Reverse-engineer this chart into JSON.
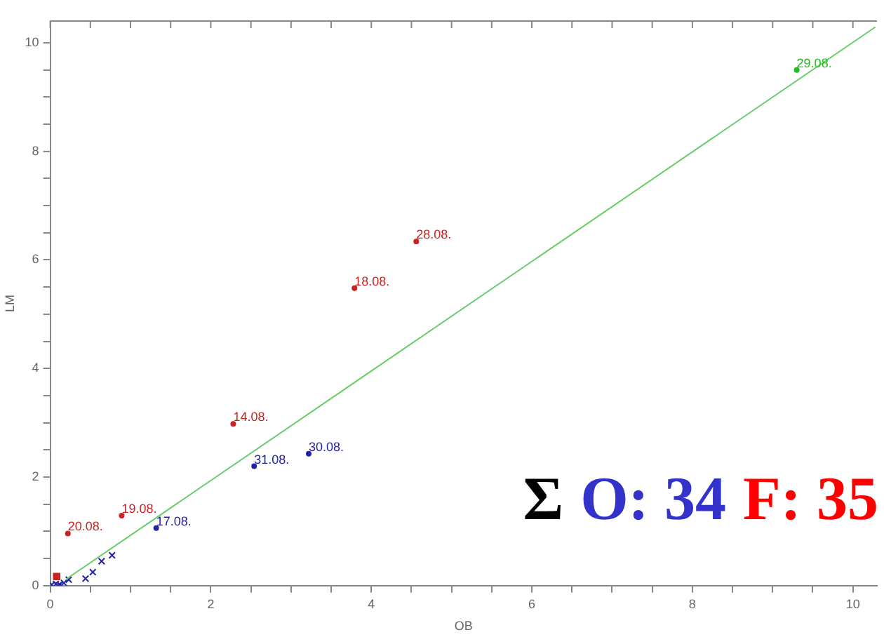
{
  "chart_data": {
    "type": "scatter",
    "xlabel": "OB",
    "ylabel": "LM",
    "xlim": [
      0,
      10.3
    ],
    "ylim": [
      0,
      10.4
    ],
    "xticks": [
      0,
      {
        "value": 0.5,
        "label": null
      },
      {
        "value": 1,
        "label": null
      },
      {
        "value": 1.5,
        "label": null
      },
      2,
      {
        "value": 2.5,
        "label": null
      },
      {
        "value": 3,
        "label": null
      },
      {
        "value": 3.5,
        "label": null
      },
      4,
      {
        "value": 4.5,
        "label": null
      },
      {
        "value": 5,
        "label": null
      },
      {
        "value": 5.5,
        "label": null
      },
      6,
      {
        "value": 6.5,
        "label": null
      },
      {
        "value": 7,
        "label": null
      },
      {
        "value": 7.5,
        "label": null
      },
      8,
      {
        "value": 8.5,
        "label": null
      },
      {
        "value": 9,
        "label": null
      },
      {
        "value": 9.5,
        "label": null
      },
      10
    ],
    "yticks": [
      0,
      {
        "value": 0.5,
        "label": null
      },
      {
        "value": 1,
        "label": null
      },
      {
        "value": 1.5,
        "label": null
      },
      2,
      {
        "value": 2.5,
        "label": null
      },
      {
        "value": 3,
        "label": null
      },
      {
        "value": 3.5,
        "label": null
      },
      4,
      {
        "value": 4.5,
        "label": null
      },
      {
        "value": 5,
        "label": null
      },
      {
        "value": 5.5,
        "label": null
      },
      6,
      {
        "value": 6.5,
        "label": null
      },
      {
        "value": 7,
        "label": null
      },
      {
        "value": 7.5,
        "label": null
      },
      8,
      {
        "value": 8.5,
        "label": null
      },
      {
        "value": 9,
        "label": null
      },
      {
        "value": 9.5,
        "label": null
      },
      10
    ],
    "grid": false,
    "legend": false,
    "series": [
      {
        "type": "line",
        "color": "#66cc66",
        "marker": "none",
        "x": [
          0.19,
          10.28
        ],
        "values": [
          0.11,
          10.29
        ]
      },
      {
        "color": "#cc2222",
        "marker": "square",
        "x": [
          0.08
        ],
        "values": [
          0.17
        ]
      },
      {
        "color": "#2222aa",
        "marker": "cross",
        "x": [
          0.02,
          0.07,
          0.1,
          0.12,
          0.17,
          0.23,
          0.44,
          0.53,
          0.64,
          0.77
        ],
        "values": [
          0.02,
          0.03,
          0.0,
          0.02,
          0.05,
          0.11,
          0.13,
          0.25,
          0.45,
          0.56
        ]
      },
      {
        "color": "#cc2222",
        "marker": "circle",
        "x": [
          0.22,
          0.89,
          2.28,
          3.79,
          4.56
        ],
        "values": [
          0.96,
          1.29,
          2.98,
          5.48,
          6.34
        ]
      },
      {
        "color": "#2222aa",
        "marker": "circle",
        "x": [
          1.32,
          2.54,
          3.22
        ],
        "values": [
          1.06,
          2.2,
          2.43
        ]
      },
      {
        "color": "#22bb22",
        "marker": "circle",
        "x": [
          9.3
        ],
        "values": [
          9.5
        ]
      }
    ],
    "annotations": [
      "Σ",
      "O: 34",
      "F: 35",
      {
        "text": "20.08.",
        "x": 0.22,
        "y": 0.96
      },
      {
        "text": "19.08.",
        "x": 0.89,
        "y": 1.29
      },
      {
        "text": "14.08.",
        "x": 2.28,
        "y": 2.98
      },
      {
        "text": "18.08.",
        "x": 3.79,
        "y": 5.48
      },
      {
        "text": "28.08.",
        "x": 4.56,
        "y": 6.34
      },
      {
        "text": "17.08.",
        "x": 1.32,
        "y": 1.06
      },
      {
        "text": "31.08.",
        "x": 2.54,
        "y": 2.2
      },
      {
        "text": "30.08.",
        "x": 3.22,
        "y": 2.43
      },
      {
        "text": "29.08.",
        "x": 9.3,
        "y": 9.5
      }
    ]
  }
}
